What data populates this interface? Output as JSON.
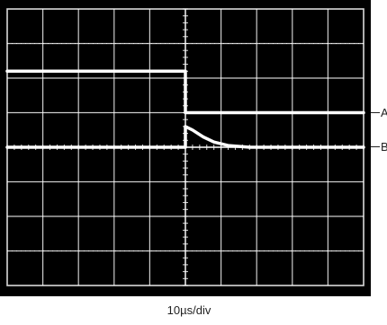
{
  "chart_data": {
    "type": "line",
    "title": "",
    "xlabel": "10µs/div",
    "ylabel": "",
    "grid": true,
    "grid_divisions": {
      "x": 10,
      "y": 8
    },
    "xlim": [
      0,
      10
    ],
    "ylim": [
      0,
      8
    ],
    "x_units": "divisions",
    "y_units": "divisions",
    "colors": {
      "screen": "#000000",
      "grid": "#ffffff",
      "trace": "#ffffff",
      "label": "#222222"
    },
    "series": [
      {
        "name": "A",
        "points": [
          [
            0,
            6.2
          ],
          [
            5,
            6.2
          ],
          [
            5,
            5.0
          ],
          [
            10,
            5.0
          ]
        ]
      },
      {
        "name": "B",
        "points": [
          [
            0,
            4.0
          ],
          [
            5,
            4.0
          ],
          [
            5,
            4.6
          ],
          [
            5.2,
            4.5
          ],
          [
            5.5,
            4.3
          ],
          [
            5.8,
            4.15
          ],
          [
            6.2,
            4.05
          ],
          [
            6.8,
            4.0
          ],
          [
            10,
            4.0
          ]
        ]
      }
    ]
  }
}
